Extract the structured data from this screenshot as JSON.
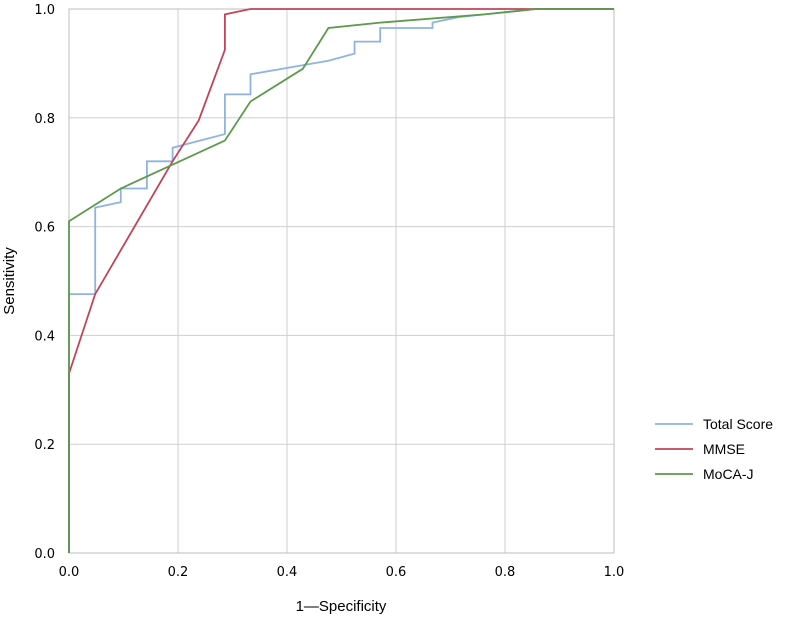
{
  "chart_data": {
    "type": "line",
    "xlabel": "1—Specificity",
    "ylabel": "Sensitivity",
    "xlim": [
      0,
      1
    ],
    "ylim": [
      0,
      1
    ],
    "x_ticks": [
      "0.0",
      "0.2",
      "0.4",
      "0.6",
      "0.8",
      "1.0"
    ],
    "y_ticks": [
      "0.0",
      "0.2",
      "0.4",
      "0.6",
      "0.8",
      "1.0"
    ],
    "grid": true,
    "legend_position": "right",
    "series": [
      {
        "name": "Total Score",
        "color": "#8fb3e0",
        "x": [
          0,
          0,
          0.048,
          0.048,
          0.095,
          0.095,
          0.143,
          0.143,
          0.19,
          0.19,
          0.286,
          0.286,
          0.333,
          0.333,
          0.476,
          0.524,
          0.524,
          0.571,
          0.571,
          0.667,
          0.667,
          0.714,
          0.762,
          0.81,
          0.857,
          1.0
        ],
        "y": [
          0,
          0.476,
          0.476,
          0.635,
          0.645,
          0.67,
          0.67,
          0.72,
          0.72,
          0.745,
          0.77,
          0.843,
          0.843,
          0.88,
          0.905,
          0.918,
          0.94,
          0.94,
          0.965,
          0.965,
          0.975,
          0.985,
          0.99,
          0.995,
          1.0,
          1.0
        ]
      },
      {
        "name": "MMSE",
        "color": "#c0455a",
        "x": [
          0,
          0.048,
          0.19,
          0.238,
          0.286,
          0.286,
          0.333,
          0.857,
          1.0
        ],
        "y": [
          0.33,
          0.476,
          0.72,
          0.795,
          0.925,
          0.99,
          1.0,
          1.0,
          1.0
        ],
        "start": {
          "x": 0,
          "y": 0
        }
      },
      {
        "name": "MoCA-J",
        "color": "#5c9a4c",
        "x": [
          0,
          0,
          0.095,
          0.286,
          0.333,
          0.429,
          0.476,
          0.571,
          0.762,
          0.857,
          1.0
        ],
        "y": [
          0,
          0.61,
          0.67,
          0.758,
          0.83,
          0.89,
          0.965,
          0.975,
          0.99,
          1.0,
          1.0
        ]
      }
    ]
  }
}
